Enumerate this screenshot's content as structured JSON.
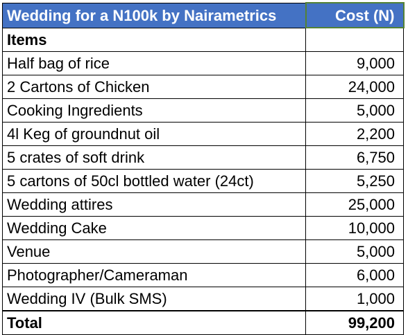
{
  "table": {
    "title": "Wedding for a N100k by Nairametrics",
    "cost_header": "Cost (N)",
    "section_label": "Items",
    "section_value": "",
    "rows": [
      {
        "item": "Half bag of rice",
        "cost": "9,000"
      },
      {
        "item": "2 Cartons of Chicken",
        "cost": "24,000"
      },
      {
        "item": "Cooking Ingredients",
        "cost": "5,000"
      },
      {
        "item": "4l Keg of groundnut oil",
        "cost": "2,200"
      },
      {
        "item": "5 crates of soft drink",
        "cost": "6,750"
      },
      {
        "item": "5 cartons of 50cl bottled water (24ct)",
        "cost": "5,250"
      },
      {
        "item": "Wedding attires",
        "cost": "25,000"
      },
      {
        "item": "Wedding Cake",
        "cost": "10,000"
      },
      {
        "item": "Venue",
        "cost": "5,000"
      },
      {
        "item": "Photographer/Cameraman",
        "cost": "6,000"
      },
      {
        "item": "Wedding IV (Bulk SMS)",
        "cost": "1,000"
      }
    ],
    "total_label": "Total",
    "total_value": "99,200"
  },
  "colors": {
    "header_fill": "#4472C4",
    "header_text": "#FFFFFF",
    "selected_cell_border": "#548235"
  }
}
